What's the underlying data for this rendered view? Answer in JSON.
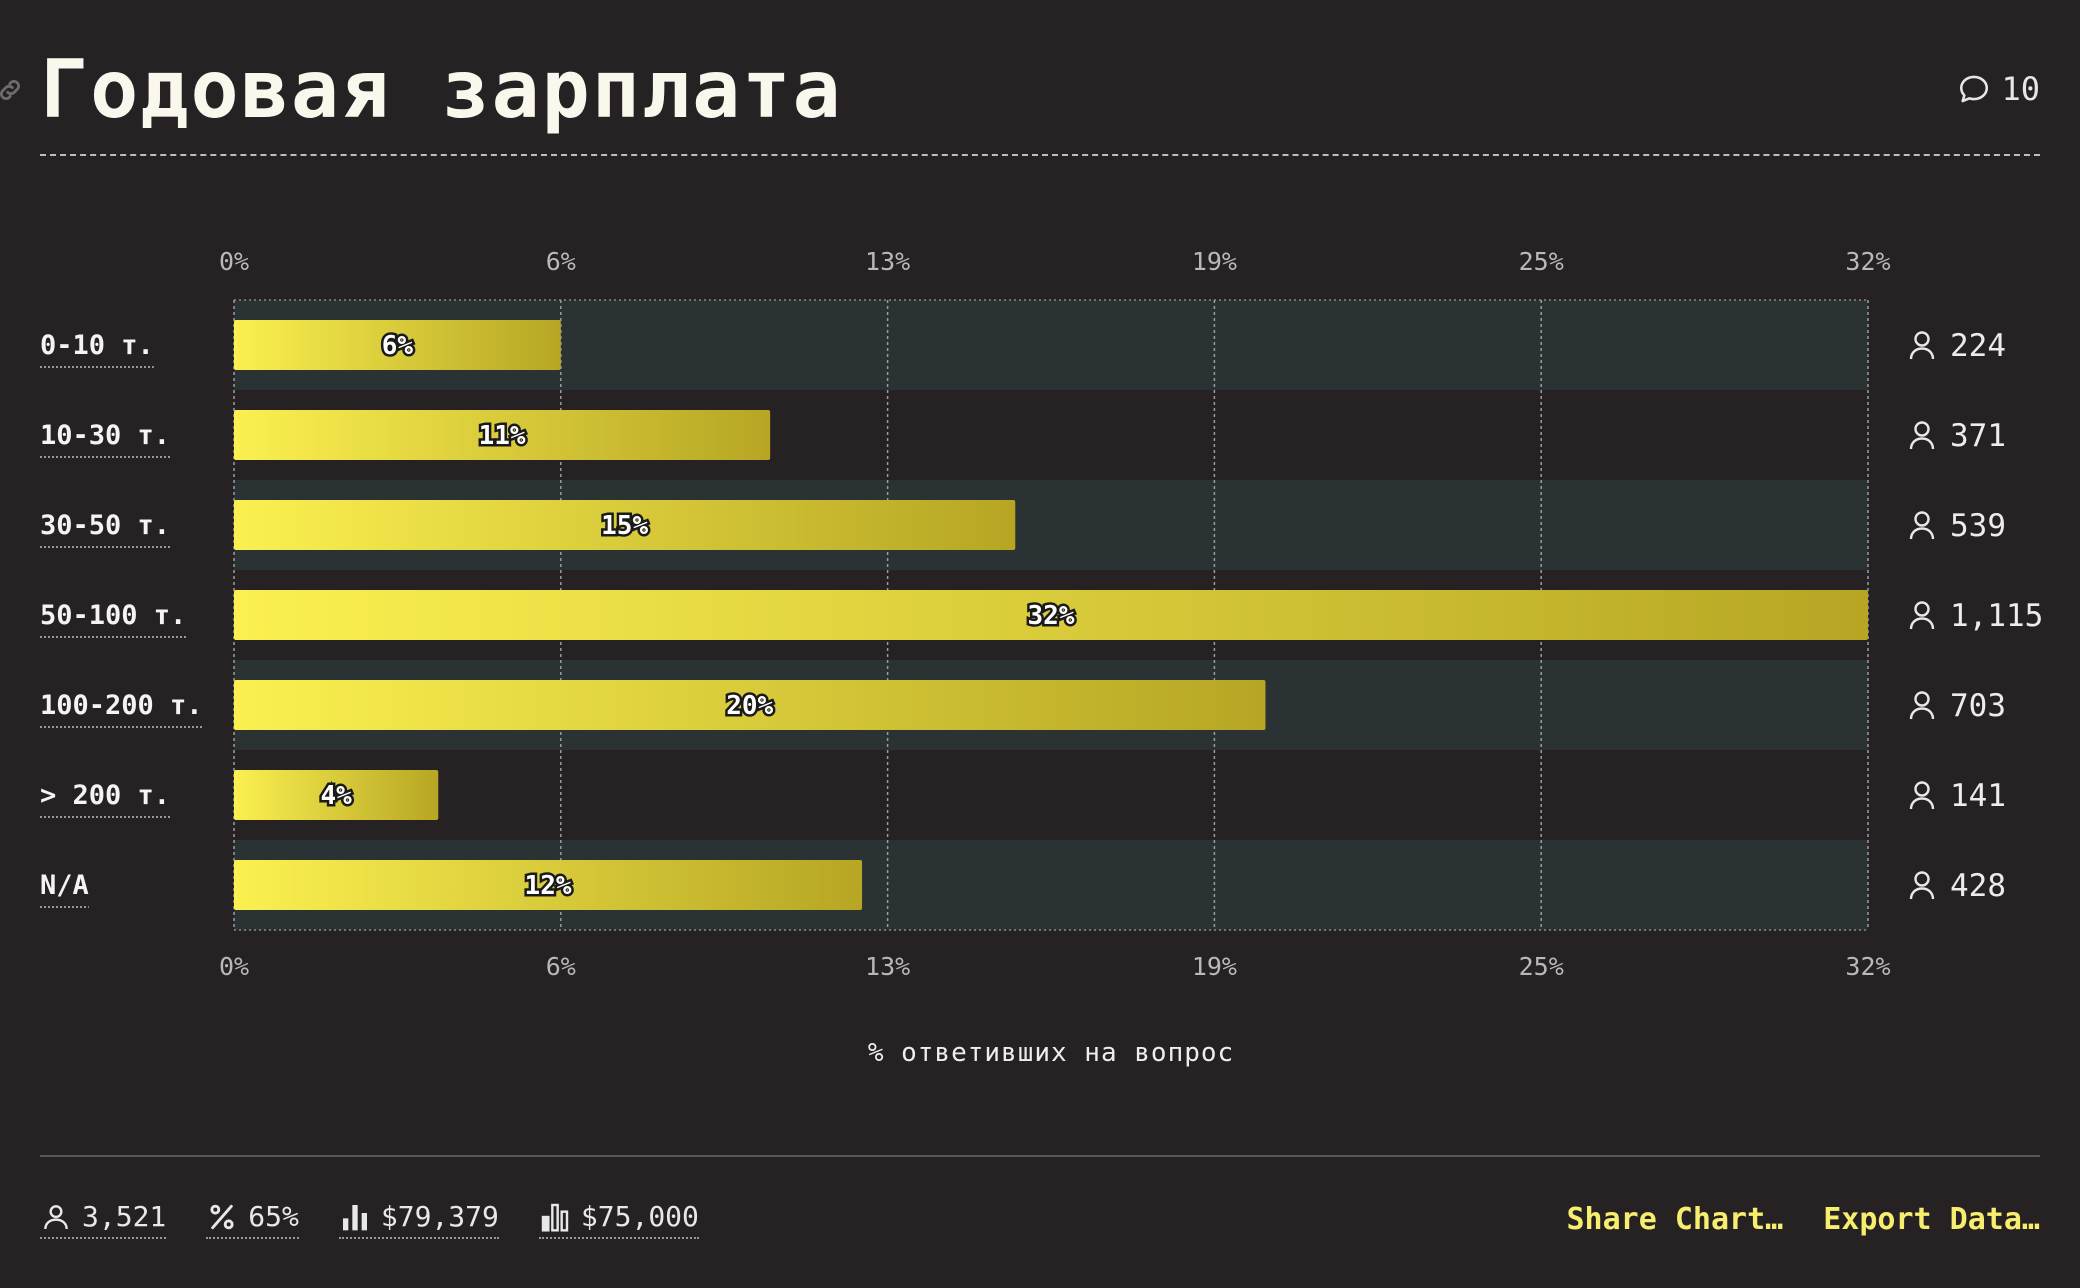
{
  "header": {
    "title": "Годовая зарплата",
    "comment_count": "10"
  },
  "chart_data": {
    "type": "bar",
    "orientation": "horizontal",
    "title": "Годовая зарплата",
    "xlabel": "% ответивших на вопрос",
    "ylabel": "",
    "xlim": [
      0,
      32
    ],
    "x_ticks": [
      "0%",
      "6%",
      "13%",
      "19%",
      "25%",
      "32%"
    ],
    "x_tick_values": [
      0,
      6.4,
      12.8,
      19.2,
      25.6,
      32
    ],
    "categories": [
      "0-10 т.",
      "10-30 т.",
      "30-50 т.",
      "50-100 т.",
      "100-200 т.",
      "> 200 т.",
      "N/A"
    ],
    "values": [
      6.4,
      10.5,
      15.3,
      32,
      20.2,
      4,
      12.3
    ],
    "value_labels": [
      "6%",
      "11%",
      "15%",
      "32%",
      "20%",
      "4%",
      "12%"
    ],
    "counts": [
      "224",
      "371",
      "539",
      "1,115",
      "703",
      "141",
      "428"
    ],
    "grid": true,
    "colors": {
      "bar_start": "#fbf050",
      "bar_end": "#b6a624",
      "row_band": "#2b3234",
      "background": "#262223"
    }
  },
  "footer": {
    "stats": [
      {
        "icon": "person-icon",
        "value": "3,521"
      },
      {
        "icon": "percent-icon",
        "value": "65%"
      },
      {
        "icon": "mean-chart-icon",
        "value": "$79,379"
      },
      {
        "icon": "median-chart-icon",
        "value": "$75,000"
      }
    ],
    "share_label": "Share Chart…",
    "export_label": "Export Data…"
  }
}
